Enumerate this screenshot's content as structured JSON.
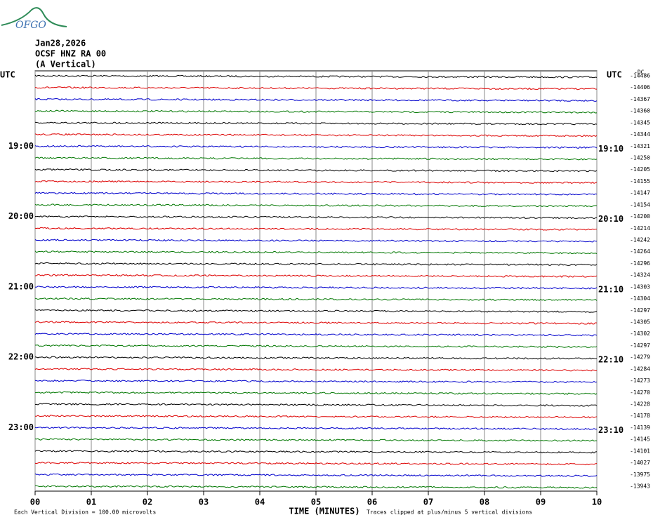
{
  "header": {
    "logo": "OFGO",
    "date": "Jan28,2026",
    "station": "OCSF HNZ RA 00",
    "component": "(A Vertical)",
    "left_zone": "UTC",
    "right_zone": "UTC",
    "dc_label": "-DC"
  },
  "left_hour_labels": [
    "19:00",
    "20:00",
    "21:00",
    "22:00",
    "23:00"
  ],
  "right_hour_labels": [
    "19:10",
    "20:10",
    "21:10",
    "22:10",
    "23:10"
  ],
  "trace_offsets": [
    -14486,
    -14406,
    -14367,
    -14360,
    -14345,
    -14344,
    -14321,
    -14250,
    -14205,
    -14155,
    -14147,
    -14154,
    -14200,
    -14214,
    -14242,
    -14264,
    -14296,
    -14324,
    -14303,
    -14304,
    -14297,
    -14305,
    -14302,
    -14297,
    -14279,
    -14284,
    -14273,
    -14270,
    -14228,
    -14178,
    -14139,
    -14145,
    -14101,
    -14027,
    -13975,
    -13943
  ],
  "x_axis": {
    "labels": [
      "00",
      "01",
      "02",
      "03",
      "04",
      "05",
      "06",
      "07",
      "08",
      "09",
      "10"
    ],
    "title": "TIME (MINUTES)"
  },
  "footer": {
    "scale": "Each Vertical Division =  100.00 microvolts",
    "clip": "Traces clipped at plus/minus 5 vertical divisions"
  }
}
